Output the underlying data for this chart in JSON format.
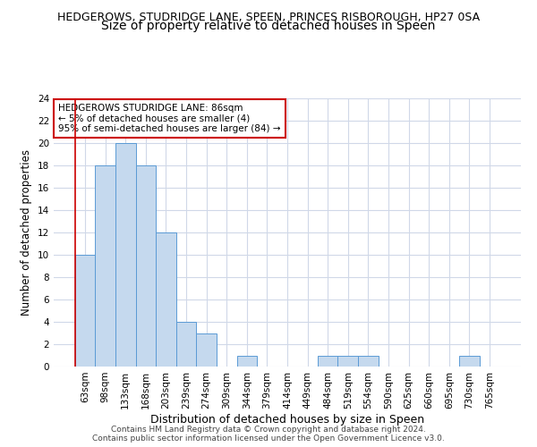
{
  "title": "HEDGEROWS, STUDRIDGE LANE, SPEEN, PRINCES RISBOROUGH, HP27 0SA",
  "subtitle": "Size of property relative to detached houses in Speen",
  "xlabel": "Distribution of detached houses by size in Speen",
  "ylabel": "Number of detached properties",
  "categories": [
    "63sqm",
    "98sqm",
    "133sqm",
    "168sqm",
    "203sqm",
    "239sqm",
    "274sqm",
    "309sqm",
    "344sqm",
    "379sqm",
    "414sqm",
    "449sqm",
    "484sqm",
    "519sqm",
    "554sqm",
    "590sqm",
    "625sqm",
    "660sqm",
    "695sqm",
    "730sqm",
    "765sqm"
  ],
  "values": [
    10,
    18,
    20,
    18,
    12,
    4,
    3,
    0,
    1,
    0,
    0,
    0,
    1,
    1,
    1,
    0,
    0,
    0,
    0,
    1,
    0
  ],
  "bar_color": "#c5d9ee",
  "bar_edgecolor": "#5b9bd5",
  "grid_color": "#d0d8e8",
  "background_color": "#ffffff",
  "annotation_title": "HEDGEROWS STUDRIDGE LANE: 86sqm",
  "annotation_line2": "← 5% of detached houses are smaller (4)",
  "annotation_line3": "95% of semi-detached houses are larger (84) →",
  "annotation_box_edgecolor": "#cc0000",
  "annotation_box_facecolor": "#ffffff",
  "vline_color": "#cc0000",
  "ylim": [
    0,
    24
  ],
  "yticks": [
    0,
    2,
    4,
    6,
    8,
    10,
    12,
    14,
    16,
    18,
    20,
    22,
    24
  ],
  "footer_line1": "Contains HM Land Registry data © Crown copyright and database right 2024.",
  "footer_line2": "Contains public sector information licensed under the Open Government Licence v3.0.",
  "title_fontsize": 9,
  "subtitle_fontsize": 10,
  "xlabel_fontsize": 9,
  "ylabel_fontsize": 8.5,
  "tick_fontsize": 7.5,
  "annotation_fontsize": 7.5,
  "footer_fontsize": 6.5
}
